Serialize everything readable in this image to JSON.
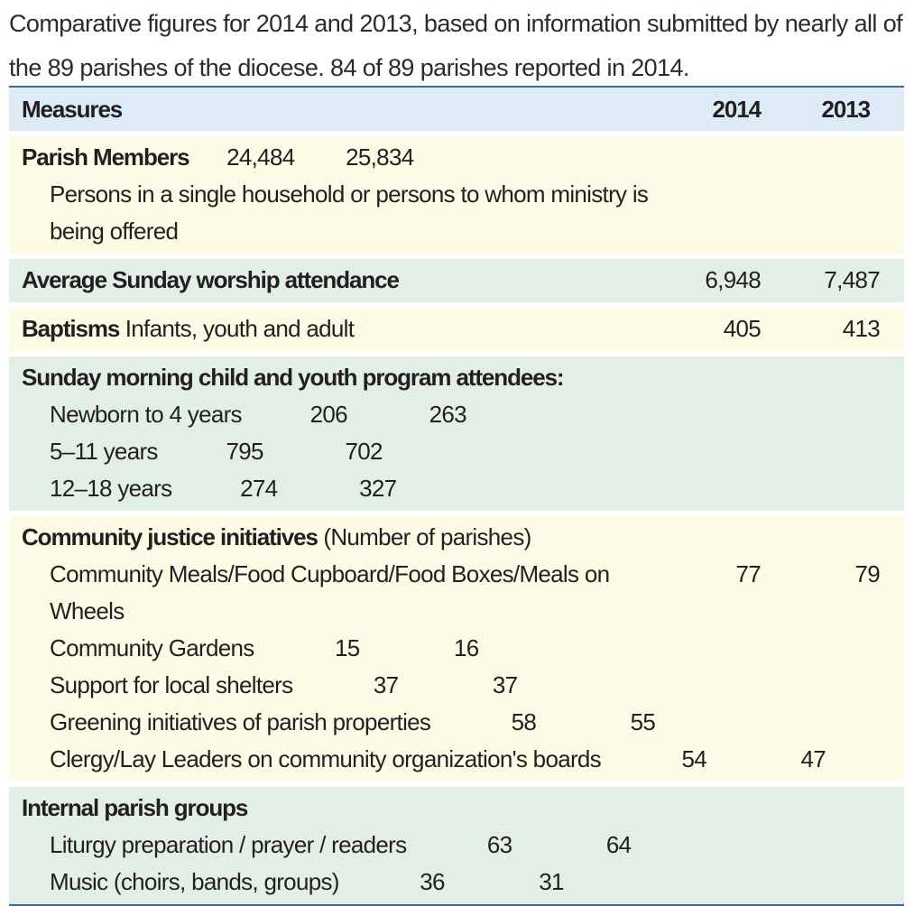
{
  "intro": "Comparative figures for 2014 and 2013, based on information submitted by nearly all of the 89 parishes of the diocese. 84 of 89 parishes reported in 2014.",
  "header": {
    "measures": "Measures",
    "col_2014": "2014",
    "col_2013": "2013"
  },
  "parish_members": {
    "label": "Parish Members",
    "v2014": "24,484",
    "v2013": "25,834",
    "description": "Persons in a single household or persons to whom ministry is being offered"
  },
  "attendance": {
    "label": "Average Sunday worship attendance",
    "v2014": "6,948",
    "v2013": "7,487"
  },
  "baptisms": {
    "label": "Baptisms",
    "detail": " Infants, youth and adult",
    "v2014": "405",
    "v2013": "413"
  },
  "youth_program": {
    "label": "Sunday morning child and youth program attendees:",
    "items": [
      {
        "label": "Newborn to 4 years",
        "v2014": "206",
        "v2013": "263"
      },
      {
        "label": "5–11 years",
        "v2014": "795",
        "v2013": "702"
      },
      {
        "label": "12–18 years",
        "v2014": "274",
        "v2013": "327"
      }
    ]
  },
  "justice": {
    "label": "Community justice initiatives",
    "detail": " (Number of parishes)",
    "items": [
      {
        "label": "Community Meals/Food Cupboard/Food Boxes/Meals on Wheels",
        "v2014": "77",
        "v2013": "79"
      },
      {
        "label": "Community Gardens",
        "v2014": "15",
        "v2013": "16"
      },
      {
        "label": "Support for local shelters",
        "v2014": "37",
        "v2013": "37"
      },
      {
        "label": "Greening initiatives of parish properties",
        "v2014": "58",
        "v2013": "55"
      },
      {
        "label": "Clergy/Lay Leaders on community organization's boards",
        "v2014": "54",
        "v2013": "47"
      }
    ]
  },
  "internal": {
    "label": "Internal parish groups",
    "items": [
      {
        "label": "Liturgy preparation / prayer / readers",
        "v2014": "63",
        "v2013": "64"
      },
      {
        "label": "Music (choirs, bands, groups)",
        "v2014": "36",
        "v2013": "31"
      }
    ]
  },
  "colors": {
    "header_bg": "#dcebf6",
    "yellow_bg": "#fdfbe5",
    "green_bg": "#e2efe6",
    "rule": "#3c66a3"
  }
}
